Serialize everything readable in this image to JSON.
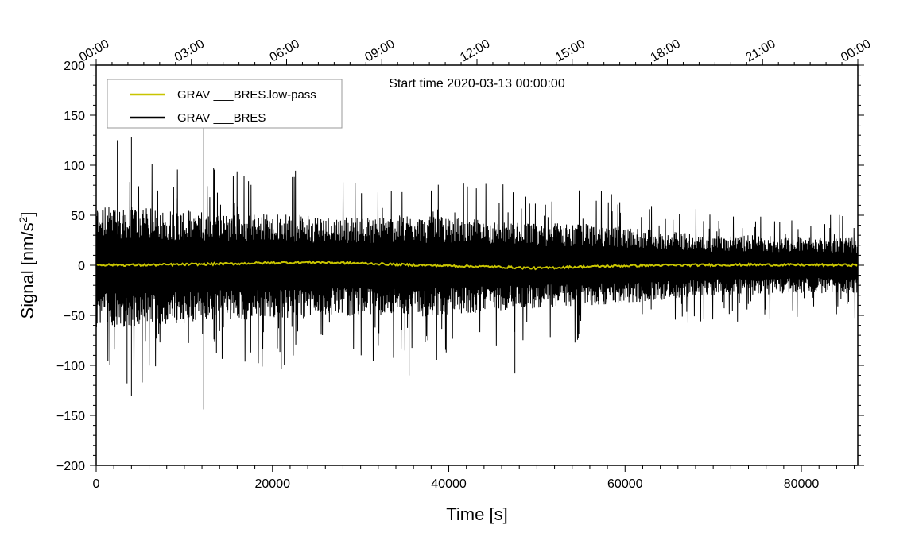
{
  "chart_data": {
    "type": "line",
    "xlabel": "Time [s]",
    "ylabel_main": "Signal [nm/s",
    "ylabel_sup": "2",
    "ylabel_close": "]",
    "xlim": [
      0,
      86400
    ],
    "ylim": [
      -200,
      200
    ],
    "x_ticks": [
      0,
      20000,
      40000,
      60000,
      80000
    ],
    "x_tick_labels": [
      "0",
      "20000",
      "40000",
      "60000",
      "80000"
    ],
    "x_minor_step": 2000,
    "y_ticks": [
      -200,
      -150,
      -100,
      -50,
      0,
      50,
      100,
      150,
      200
    ],
    "y_tick_labels": [
      "−200",
      "−150",
      "−100",
      "−50",
      "0",
      "50",
      "100",
      "150",
      "200"
    ],
    "y_minor_step": 10,
    "top_axis": {
      "ticks": [
        0,
        10800,
        21600,
        32400,
        43200,
        54000,
        64800,
        75600,
        86400
      ],
      "labels": [
        "00:00",
        "03:00",
        "06:00",
        "09:00",
        "12:00",
        "15:00",
        "18:00",
        "21:00",
        "00:00"
      ],
      "minor_step": 1800
    },
    "annotation": "Start time 2020-03-13 00:00:00",
    "legend": {
      "position": "top-left",
      "entries": [
        {
          "name": "GRAV ___BRES.low-pass",
          "color": "#c8c400"
        },
        {
          "name": "GRAV ___BRES",
          "color": "#000000"
        }
      ]
    },
    "series": [
      {
        "name": "GRAV ___BRES",
        "color": "#000000",
        "envelope_x": [
          0,
          5000,
          10000,
          15000,
          20000,
          25000,
          30000,
          35000,
          40000,
          45000,
          50000,
          55000,
          60000,
          65000,
          70000,
          75000,
          80000,
          86400
        ],
        "envelope_upper": [
          60,
          58,
          55,
          52,
          52,
          50,
          48,
          50,
          48,
          45,
          42,
          42,
          38,
          34,
          30,
          30,
          28,
          28
        ],
        "envelope_lower": [
          -62,
          -62,
          -58,
          -55,
          -55,
          -52,
          -50,
          -52,
          -50,
          -46,
          -43,
          -42,
          -38,
          -34,
          -30,
          -30,
          -28,
          -28
        ],
        "spikes": [
          {
            "x": 4000,
            "y": 128
          },
          {
            "x": 12200,
            "y": 143
          },
          {
            "x": 4000,
            "y": -131
          },
          {
            "x": 12200,
            "y": -144
          },
          {
            "x": 2400,
            "y": 125
          },
          {
            "x": 21000,
            "y": -104
          },
          {
            "x": 35500,
            "y": -110
          },
          {
            "x": 47500,
            "y": -108
          },
          {
            "x": 3500,
            "y": -118
          }
        ]
      },
      {
        "name": "GRAV ___BRES.low-pass",
        "color": "#c8c400",
        "x": [
          0,
          5000,
          10000,
          15000,
          20000,
          25000,
          30000,
          35000,
          40000,
          45000,
          50000,
          55000,
          60000,
          65000,
          70000,
          75000,
          80000,
          86400
        ],
        "y": [
          0.5,
          0.2,
          0.8,
          1.5,
          2.5,
          3.0,
          2.0,
          0.5,
          -0.5,
          -1.5,
          -3.0,
          -1.5,
          -0.5,
          0.0,
          0.3,
          0.5,
          0.3,
          0.2
        ]
      }
    ]
  }
}
